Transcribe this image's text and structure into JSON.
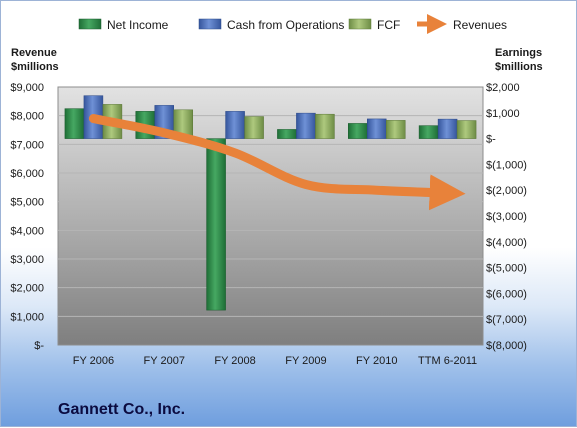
{
  "chart_data": {
    "type": "bar",
    "title": "Gannett Co., Inc.",
    "categories": [
      "FY 2006",
      "FY 2007",
      "FY 2008",
      "FY 2009",
      "FY 2010",
      "TTM 6-2011"
    ],
    "series": [
      {
        "name": "Net Income",
        "axis": "right",
        "type": "bar",
        "color": "#2e8b4a",
        "values": [
          1161,
          1056,
          -6648,
          355,
          588,
          503
        ]
      },
      {
        "name": "Cash from Operations",
        "axis": "right",
        "type": "bar",
        "color": "#4f74c0",
        "values": [
          1664,
          1287,
          1055,
          987,
          763,
          755
        ]
      },
      {
        "name": "FCF",
        "axis": "right",
        "type": "bar",
        "color": "#92b364",
        "values": [
          1326,
          1116,
          855,
          946,
          707,
          700
        ]
      },
      {
        "name": "Revenues",
        "axis": "left",
        "type": "line",
        "color": "#e8823a",
        "values": [
          7900,
          7400,
          6700,
          5600,
          5400,
          5300
        ]
      }
    ],
    "left_axis": {
      "label_line1": "Revenue",
      "label_line2": "$millions",
      "min": 0,
      "max": 9000,
      "step": 1000,
      "tick_labels": [
        "$-",
        "$1,000",
        "$2,000",
        "$3,000",
        "$4,000",
        "$5,000",
        "$6,000",
        "$7,000",
        "$8,000",
        "$9,000"
      ]
    },
    "right_axis": {
      "label_line1": "Earnings",
      "label_line2": "$millions",
      "min": -8000,
      "max": 2000,
      "step": 1000,
      "tick_labels": [
        "$(8,000)",
        "$(7,000)",
        "$(6,000)",
        "$(5,000)",
        "$(4,000)",
        "$(3,000)",
        "$(2,000)",
        "$(1,000)",
        "$-",
        "$1,000",
        "$2,000"
      ]
    },
    "legend_position": "top",
    "grid": true
  }
}
